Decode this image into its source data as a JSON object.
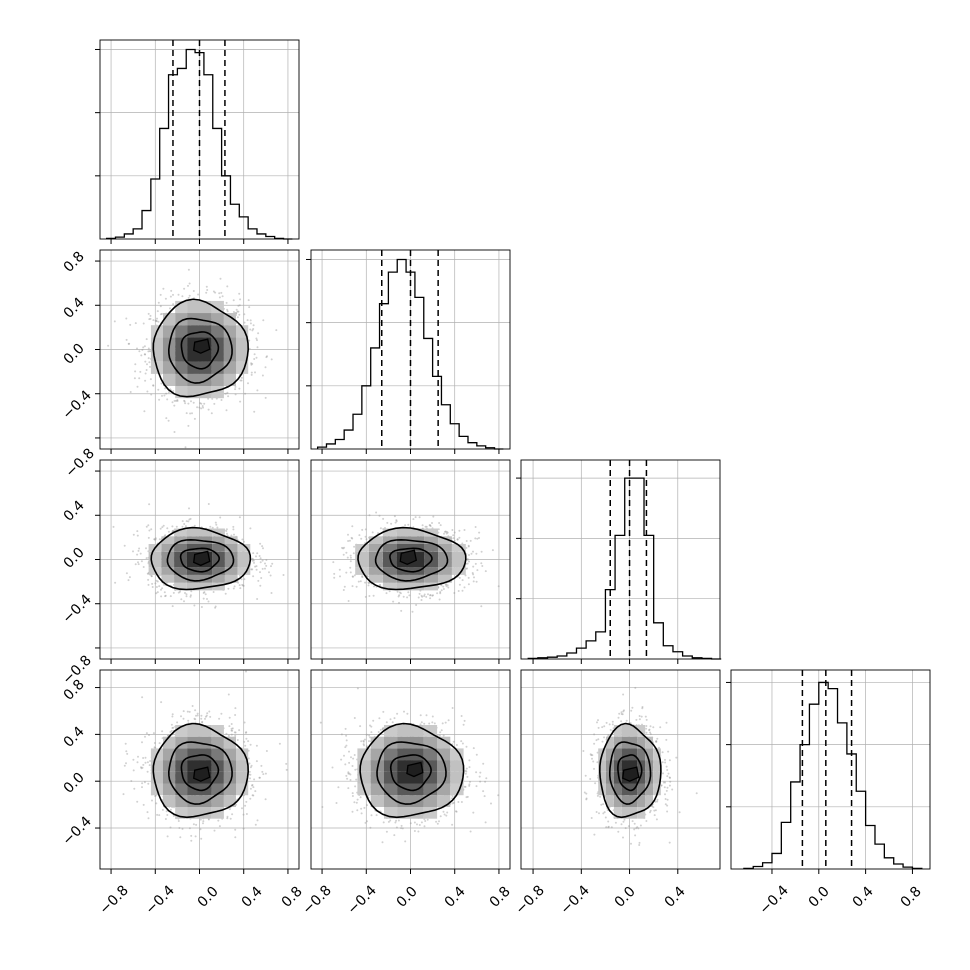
{
  "figure": {
    "background": "#ffffff",
    "ink": "#000000",
    "grid_color": "#b0b0b0"
  },
  "chart_data": [
    {
      "type": "histogram",
      "name": "histogram-param-1",
      "row": 0,
      "col": 0,
      "x_range": [
        -0.9,
        0.9
      ],
      "bin_centers": [
        -0.8,
        -0.72,
        -0.64,
        -0.56,
        -0.48,
        -0.4,
        -0.32,
        -0.24,
        -0.16,
        -0.08,
        0.0,
        0.08,
        0.16,
        0.24,
        0.32,
        0.4,
        0.48,
        0.56,
        0.64,
        0.72,
        0.8
      ],
      "values": [
        1,
        3,
        8,
        16,
        45,
        95,
        175,
        260,
        270,
        300,
        295,
        260,
        175,
        100,
        55,
        35,
        16,
        8,
        4,
        1,
        0
      ],
      "ymax": 315,
      "quantile_lines": [
        -0.24,
        0.0,
        0.23
      ],
      "x_grid": [
        -0.8,
        -0.4,
        0.0,
        0.4,
        0.8
      ],
      "y_grid": [
        100,
        200,
        300
      ]
    },
    {
      "type": "histogram",
      "name": "histogram-param-2",
      "row": 1,
      "col": 1,
      "x_range": [
        -0.9,
        0.9
      ],
      "bin_centers": [
        -0.8,
        -0.72,
        -0.64,
        -0.56,
        -0.48,
        -0.4,
        -0.32,
        -0.24,
        -0.16,
        -0.08,
        0.0,
        0.08,
        0.16,
        0.24,
        0.32,
        0.4,
        0.48,
        0.56,
        0.64,
        0.72,
        0.8
      ],
      "values": [
        3,
        8,
        15,
        30,
        55,
        100,
        160,
        230,
        280,
        300,
        280,
        240,
        175,
        115,
        70,
        40,
        20,
        10,
        5,
        2,
        0
      ],
      "ymax": 315,
      "quantile_lines": [
        -0.26,
        0.0,
        0.25
      ],
      "x_grid": [
        -0.8,
        -0.4,
        0.0,
        0.4,
        0.8
      ],
      "y_grid": [
        100,
        200,
        300
      ]
    },
    {
      "type": "histogram",
      "name": "histogram-param-3",
      "row": 2,
      "col": 2,
      "x_range": [
        -0.9,
        0.75
      ],
      "bin_centers": [
        -0.8,
        -0.72,
        -0.64,
        -0.56,
        -0.48,
        -0.4,
        -0.32,
        -0.24,
        -0.16,
        -0.08,
        0.0,
        0.08,
        0.16,
        0.24,
        0.32,
        0.4,
        0.48,
        0.56,
        0.64,
        0.72
      ],
      "values": [
        1,
        2,
        3,
        5,
        10,
        18,
        30,
        45,
        115,
        205,
        300,
        300,
        205,
        60,
        22,
        12,
        5,
        2,
        1,
        0
      ],
      "ymax": 330,
      "quantile_lines": [
        -0.16,
        0.0,
        0.14
      ],
      "x_grid": [
        -0.8,
        -0.4,
        0.0,
        0.4
      ],
      "y_grid": [
        100,
        200,
        300
      ]
    },
    {
      "type": "histogram",
      "name": "histogram-param-4",
      "row": 3,
      "col": 3,
      "x_range": [
        -0.75,
        0.95
      ],
      "bin_centers": [
        -0.6,
        -0.52,
        -0.44,
        -0.36,
        -0.28,
        -0.2,
        -0.12,
        -0.04,
        0.04,
        0.12,
        0.2,
        0.28,
        0.36,
        0.44,
        0.52,
        0.6,
        0.68,
        0.76,
        0.84
      ],
      "values": [
        1,
        4,
        10,
        25,
        75,
        140,
        200,
        265,
        300,
        290,
        235,
        185,
        125,
        70,
        40,
        18,
        8,
        3,
        1
      ],
      "ymax": 320,
      "quantile_lines": [
        -0.14,
        0.06,
        0.28
      ],
      "x_grid": [
        -0.4,
        0.0,
        0.4,
        0.8
      ],
      "y_grid": [
        100,
        200,
        300
      ]
    },
    {
      "type": "scatter",
      "name": "density-param-1-vs-param-2",
      "row": 1,
      "col": 0,
      "x_range": [
        -0.9,
        0.9
      ],
      "y_range": [
        -0.9,
        0.9
      ],
      "center": [
        0.0,
        0.0
      ],
      "sigma": [
        0.22,
        0.22
      ],
      "contour_radii": [
        0.75,
        1.3,
        1.95
      ],
      "blob_offsets": [
        [
          0.0,
          0.0
        ],
        [
          0.02,
          0.03
        ],
        [
          -0.05,
          0.04
        ]
      ],
      "samples": 1500,
      "x_grid": [
        -0.8,
        -0.4,
        0.0,
        0.4,
        0.8
      ],
      "y_grid": [
        -0.8,
        -0.4,
        0.0,
        0.4,
        0.8
      ]
    },
    {
      "type": "scatter",
      "name": "density-param-1-vs-param-3",
      "row": 2,
      "col": 0,
      "x_range": [
        -0.9,
        0.9
      ],
      "y_range": [
        -0.9,
        0.9
      ],
      "center": [
        0.0,
        0.0
      ],
      "sigma": [
        0.23,
        0.14
      ],
      "contour_radii": [
        0.75,
        1.3,
        1.95
      ],
      "blob_offsets": [
        [
          0.0,
          0.0
        ],
        [
          0.02,
          0.01
        ],
        [
          -0.03,
          -0.01
        ]
      ],
      "samples": 1500,
      "x_grid": [
        -0.8,
        -0.4,
        0.0,
        0.4,
        0.8
      ],
      "y_grid": [
        -0.8,
        -0.4,
        0.0,
        0.4,
        0.8
      ]
    },
    {
      "type": "scatter",
      "name": "density-param-2-vs-param-3",
      "row": 2,
      "col": 1,
      "x_range": [
        -0.9,
        0.9
      ],
      "y_range": [
        -0.9,
        0.9
      ],
      "center": [
        0.0,
        0.0
      ],
      "sigma": [
        0.25,
        0.14
      ],
      "contour_radii": [
        0.75,
        1.3,
        1.95
      ],
      "blob_offsets": [
        [
          0.0,
          0.0
        ],
        [
          -0.02,
          0.02
        ],
        [
          0.03,
          0.0
        ]
      ],
      "samples": 1500,
      "x_grid": [
        -0.8,
        -0.4,
        0.0,
        0.4,
        0.8
      ],
      "y_grid": [
        -0.8,
        -0.4,
        0.0,
        0.4,
        0.8
      ]
    },
    {
      "type": "scatter",
      "name": "density-param-1-vs-param-4",
      "row": 3,
      "col": 0,
      "x_range": [
        -0.9,
        0.9
      ],
      "y_range": [
        -0.75,
        0.95
      ],
      "center": [
        0.0,
        0.08
      ],
      "sigma": [
        0.22,
        0.2
      ],
      "contour_radii": [
        0.75,
        1.3,
        1.95
      ],
      "blob_offsets": [
        [
          0.0,
          0.0
        ],
        [
          0.02,
          -0.02
        ],
        [
          -0.02,
          0.03
        ]
      ],
      "samples": 1500,
      "x_grid": [
        -0.8,
        -0.4,
        0.0,
        0.4,
        0.8
      ],
      "y_grid": [
        -0.4,
        0.0,
        0.4,
        0.8
      ]
    },
    {
      "type": "scatter",
      "name": "density-param-2-vs-param-4",
      "row": 3,
      "col": 1,
      "x_range": [
        -0.9,
        0.9
      ],
      "y_range": [
        -0.75,
        0.95
      ],
      "center": [
        0.0,
        0.08
      ],
      "sigma": [
        0.24,
        0.2
      ],
      "contour_radii": [
        0.75,
        1.3,
        1.95
      ],
      "blob_offsets": [
        [
          0.0,
          0.0
        ],
        [
          0.04,
          0.02
        ],
        [
          -0.03,
          0.02
        ]
      ],
      "samples": 1500,
      "x_grid": [
        -0.8,
        -0.4,
        0.0,
        0.4,
        0.8
      ],
      "y_grid": [
        -0.4,
        0.0,
        0.4,
        0.8
      ]
    },
    {
      "type": "scatter",
      "name": "density-param-3-vs-param-4",
      "row": 3,
      "col": 2,
      "x_range": [
        -0.9,
        0.75
      ],
      "y_range": [
        -0.75,
        0.95
      ],
      "center": [
        0.0,
        0.08
      ],
      "sigma": [
        0.13,
        0.2
      ],
      "contour_radii": [
        0.75,
        1.3,
        1.95
      ],
      "blob_offsets": [
        [
          0.0,
          0.0
        ],
        [
          0.01,
          -0.02
        ],
        [
          -0.01,
          0.02
        ]
      ],
      "samples": 1300,
      "x_grid": [
        -0.8,
        -0.4,
        0.0,
        0.4
      ],
      "y_grid": [
        -0.4,
        0.0,
        0.4,
        0.8
      ]
    }
  ],
  "axes": {
    "y_ticks": [
      {
        "row": 1,
        "labels": [
          "−0.8",
          "−0.4",
          "0.0",
          "0.4",
          "0.8"
        ]
      },
      {
        "row": 2,
        "labels": [
          "−0.8",
          "−0.4",
          "0.0",
          "0.4"
        ]
      },
      {
        "row": 3,
        "labels": [
          "−0.4",
          "0.0",
          "0.4",
          "0.8"
        ]
      }
    ],
    "x_ticks": [
      {
        "col": 0,
        "labels": [
          "−0.8",
          "−0.4",
          "0.0",
          "0.4",
          "0.8"
        ]
      },
      {
        "col": 1,
        "labels": [
          "−0.8",
          "−0.4",
          "0.0",
          "0.4",
          "0.8"
        ]
      },
      {
        "col": 2,
        "labels": [
          "−0.8",
          "−0.4",
          "0.0",
          "0.4"
        ]
      },
      {
        "col": 3,
        "labels": [
          "−0.4",
          "0.0",
          "0.4",
          "0.8"
        ]
      }
    ]
  }
}
